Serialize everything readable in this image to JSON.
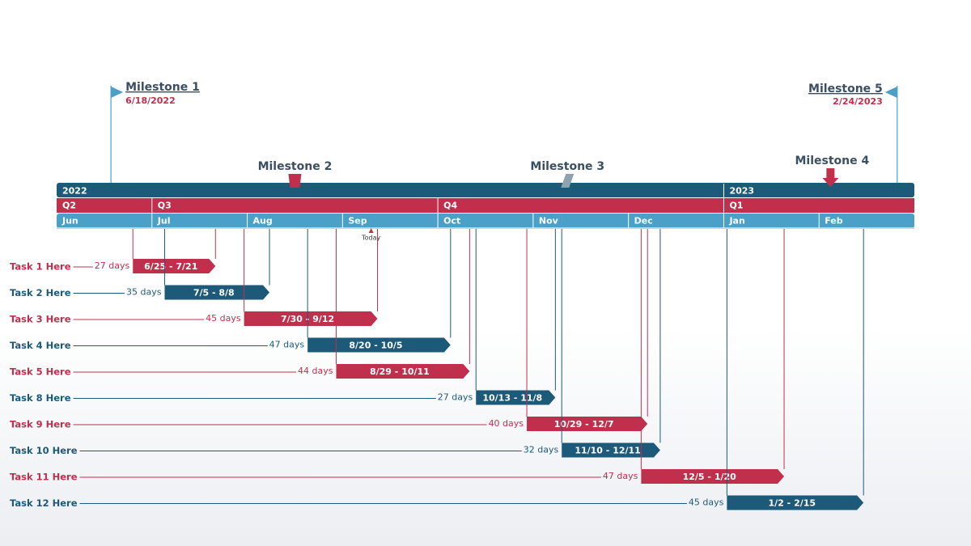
{
  "chart_data": {
    "type": "gantt",
    "xlim": [
      6,
      15
    ],
    "xticks": [
      {
        "value": 6,
        "label": "Jun"
      },
      {
        "value": 7,
        "label": "Jul"
      },
      {
        "value": 8,
        "label": "Aug"
      },
      {
        "value": 9,
        "label": "Sep"
      },
      {
        "value": 10,
        "label": "Oct"
      },
      {
        "value": 11,
        "label": "Nov"
      },
      {
        "value": 12,
        "label": "Dec"
      },
      {
        "value": 13,
        "label": "Jan"
      },
      {
        "value": 14,
        "label": "Feb"
      }
    ],
    "quarters": [
      {
        "value": 6,
        "label": "Q2"
      },
      {
        "value": 7,
        "label": "Q3"
      },
      {
        "value": 10,
        "label": "Q4"
      },
      {
        "value": 13,
        "label": "Q1"
      }
    ],
    "years": [
      {
        "value": 6,
        "label": "2022"
      },
      {
        "value": 13,
        "label": "2023"
      }
    ],
    "header_colors": [
      "#1d5a7a",
      "#c0304d",
      "#4aa0c6"
    ],
    "today": {
      "label": "Today",
      "x": 9.3,
      "color": "#c0304d"
    },
    "milestones": [
      {
        "name": "Milestone 1",
        "date": "6/18/2022",
        "x": 6.57,
        "color": "#4aa0c6"
      },
      {
        "name": "Milestone 2",
        "x": 8.5,
        "color": "#c0304d"
      },
      {
        "name": "Milestone 3",
        "x": 11.36,
        "color": "#8fa3ad"
      },
      {
        "name": "Milestone 4",
        "x": 14.12,
        "color": "#c0304d"
      },
      {
        "name": "Milestone 5",
        "date": "2/24/2023",
        "x": 14.82,
        "color": "#4aa0c6"
      }
    ],
    "categories": [
      "Task 1 Here",
      "Task 2 Here",
      "Task 3 Here",
      "Task 4 Here",
      "Task 5 Here",
      "Task 8 Here",
      "Task 9 Here",
      "Task 10 Here",
      "Task 11 Here",
      "Task 12 Here"
    ],
    "start": [
      "6/25",
      "7/5",
      "7/30",
      "8/20",
      "8/29",
      "10/13",
      "10/29",
      "11/10",
      "12/5",
      "1/2"
    ],
    "end": [
      "7/21",
      "8/8",
      "9/12",
      "10/5",
      "10/11",
      "11/8",
      "12/7",
      "12/11",
      "1/20",
      "2/15"
    ],
    "values": [
      27,
      35,
      45,
      47,
      44,
      27,
      40,
      32,
      47,
      45
    ],
    "value_labels": [
      "27 days",
      "35 days",
      "45 days",
      "47 days",
      "44 days",
      "27 days",
      "40 days",
      "32 days",
      "47 days",
      "45 days"
    ],
    "colors": [
      "#c0304d",
      "#1d5a7a",
      "#c0304d",
      "#1d5a7a",
      "#c0304d",
      "#1d5a7a",
      "#c0304d",
      "#1d5a7a",
      "#c0304d",
      "#1d5a7a"
    ]
  }
}
